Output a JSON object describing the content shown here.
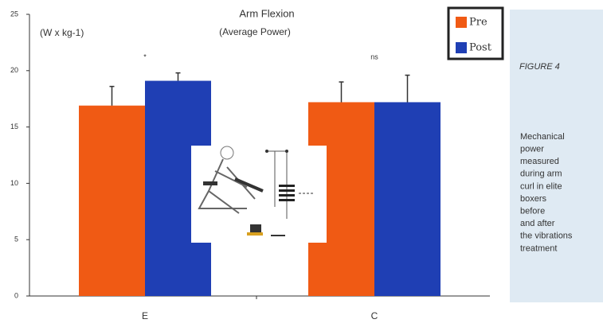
{
  "chart_data": {
    "type": "bar",
    "title": "Arm Flexion",
    "subtitle": "(Average Power)",
    "y_label": "(W x kg-1)",
    "categories": [
      "E",
      "C"
    ],
    "series": [
      {
        "name": "Pre",
        "color": "#f05a14",
        "values": [
          16.9,
          17.2
        ],
        "errors": [
          1.7,
          1.8
        ]
      },
      {
        "name": "Post",
        "color": "#1f3fb4",
        "values": [
          19.1,
          17.2
        ],
        "errors": [
          0.7,
          2.4
        ]
      }
    ],
    "annotations": [
      "*",
      "ns"
    ],
    "ylim": [
      0,
      25
    ],
    "yticks": [
      0,
      5,
      10,
      15,
      20,
      25
    ],
    "figure_label": "FIGURE 4",
    "caption": [
      "Mechanical",
      "power",
      "measured",
      "during arm",
      "curl in elite",
      "boxers",
      "before",
      "and after",
      "the vibrations",
      "treatment"
    ]
  }
}
